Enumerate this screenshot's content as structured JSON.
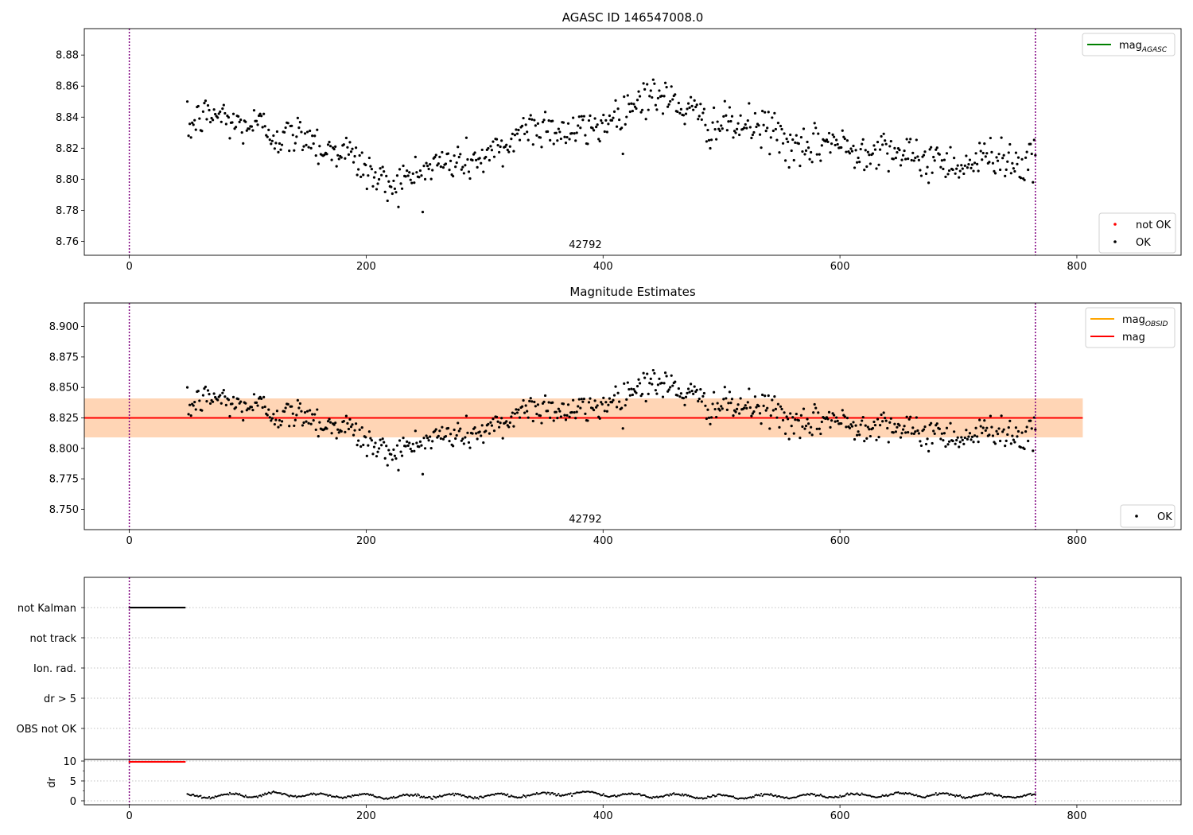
{
  "chart_data": [
    {
      "type": "scatter",
      "title": "AGASC ID 146547008.0",
      "annotation": "42792",
      "xlim": [
        -38,
        888
      ],
      "ylim": [
        8.751,
        8.897
      ],
      "x_ticks": [
        0,
        200,
        400,
        600,
        800
      ],
      "y_ticks": [
        8.76,
        8.78,
        8.8,
        8.82,
        8.84,
        8.86,
        8.88
      ],
      "y_tick_labels": [
        "8.76",
        "8.78",
        "8.80",
        "8.82",
        "8.84",
        "8.86",
        "8.88"
      ],
      "vertical_lines_x": [
        0,
        765
      ],
      "legend_upper": {
        "position": "upper right",
        "entries": [
          {
            "label": "mag",
            "sub": "AGASC",
            "color": "#008000",
            "kind": "line"
          }
        ]
      },
      "legend_lower": {
        "position": "lower right",
        "entries": [
          {
            "label": "not OK",
            "color": "#ff0000",
            "kind": "dot"
          },
          {
            "label": "OK",
            "color": "#000000",
            "kind": "dot"
          }
        ]
      },
      "series": [
        {
          "name": "OK",
          "x_start": 49,
          "x_end": 765,
          "n_points": 700,
          "trend_x": [
            49,
            60,
            75,
            90,
            110,
            130,
            150,
            165,
            180,
            200,
            215,
            235,
            260,
            290,
            315,
            330,
            350,
            370,
            390,
            420,
            435,
            460,
            490,
            520,
            545,
            565,
            590,
            610,
            640,
            660,
            680,
            700,
            715,
            730,
            750,
            765
          ],
          "trend_y": [
            8.832,
            8.84,
            8.842,
            8.835,
            8.835,
            8.826,
            8.83,
            8.818,
            8.82,
            8.806,
            8.797,
            8.8,
            8.81,
            8.812,
            8.818,
            8.832,
            8.835,
            8.83,
            8.832,
            8.845,
            8.855,
            8.85,
            8.835,
            8.834,
            8.832,
            8.815,
            8.826,
            8.818,
            8.822,
            8.812,
            8.813,
            8.81,
            8.81,
            8.818,
            8.81,
            8.81
          ],
          "noise": 0.0065
        }
      ]
    },
    {
      "type": "scatter",
      "title": "Magnitude Estimates",
      "annotation": "42792",
      "xlim": [
        -38,
        888
      ],
      "ylim": [
        8.7333,
        8.9193
      ],
      "x_ticks": [
        0,
        200,
        400,
        600,
        800
      ],
      "y_ticks": [
        8.75,
        8.775,
        8.8,
        8.825,
        8.85,
        8.875,
        8.9
      ],
      "y_tick_labels": [
        "8.750",
        "8.775",
        "8.800",
        "8.825",
        "8.850",
        "8.875",
        "8.900"
      ],
      "vertical_lines_x": [
        0,
        765
      ],
      "mag_obsid": {
        "value": 8.825,
        "band": [
          8.809,
          8.841
        ],
        "x_range": [
          -38,
          805
        ],
        "color": "#ffa500"
      },
      "mag": {
        "value": 8.825,
        "band": [
          8.809,
          8.841
        ],
        "x_range": [
          -38,
          805
        ],
        "color": "#ff0000"
      },
      "legend_upper": {
        "position": "upper right",
        "entries": [
          {
            "label": "mag",
            "sub": "OBSID",
            "color": "#ffa500",
            "kind": "line"
          },
          {
            "label": "mag",
            "color": "#ff0000",
            "kind": "line"
          }
        ]
      },
      "legend_lower": {
        "position": "lower right",
        "entries": [
          {
            "label": "OK",
            "color": "#000000",
            "kind": "dot"
          }
        ]
      }
    },
    {
      "type": "scatter",
      "title": "",
      "xlim": [
        -38,
        888
      ],
      "x_ticks": [
        0,
        200,
        400,
        600,
        800
      ],
      "vertical_lines_x": [
        0,
        765
      ],
      "flag_rows": [
        "not Kalman",
        "not track",
        "Ion. rad.",
        "dr > 5",
        "OBS not OK"
      ],
      "flag_points": [
        {
          "row": "not Kalman",
          "x_range": [
            0,
            47
          ]
        }
      ],
      "dr": {
        "ylabel": "dr",
        "ylim": [
          -1,
          10.4
        ],
        "y_ticks": [
          0,
          5,
          10
        ],
        "y_tick_labels": [
          "0",
          "5",
          "10"
        ],
        "clipped_x_range": [
          0,
          47
        ],
        "clipped_value": 9.8,
        "x_start": 49,
        "x_end": 765,
        "trend_x": [
          49,
          80,
          120,
          170,
          200,
          230,
          260,
          300,
          340,
          380,
          420,
          460,
          500,
          540,
          580,
          620,
          660,
          700,
          740,
          765
        ],
        "trend_y": [
          1.3,
          1.2,
          1.6,
          1.3,
          1.2,
          1.0,
          1.3,
          1.2,
          1.5,
          2.0,
          1.4,
          1.3,
          0.9,
          1.2,
          1.2,
          1.4,
          1.6,
          1.3,
          1.3,
          1.2
        ]
      }
    }
  ]
}
